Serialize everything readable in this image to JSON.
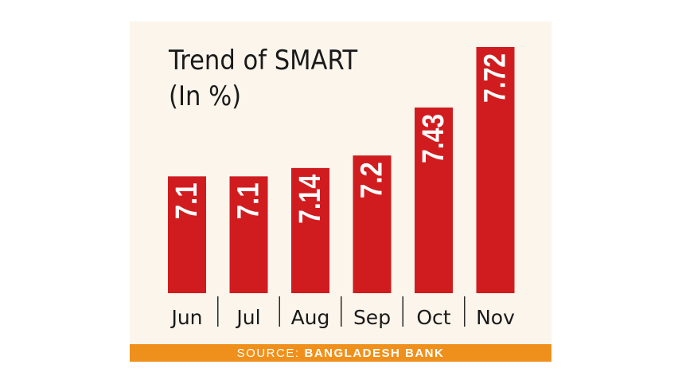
{
  "chart_data": {
    "type": "bar",
    "title": "Trend of SMART",
    "subtitle": "(In %)",
    "categories": [
      "Jun",
      "Jul",
      "Aug",
      "Sep",
      "Oct",
      "Nov"
    ],
    "values": [
      7.1,
      7.1,
      7.14,
      7.2,
      7.43,
      7.72
    ],
    "value_labels": [
      "7.1",
      "7.1",
      "7.14",
      "7.2",
      "7.43",
      "7.72"
    ],
    "ylim": [
      6.54,
      7.72
    ],
    "grid": false,
    "legend": "none",
    "bar_color": "#d01c1f",
    "background_color": "#fbf5ec"
  },
  "source": {
    "prefix": "SOURCE:",
    "name": "BANGLADESH BANK",
    "color": "#f0901c"
  }
}
